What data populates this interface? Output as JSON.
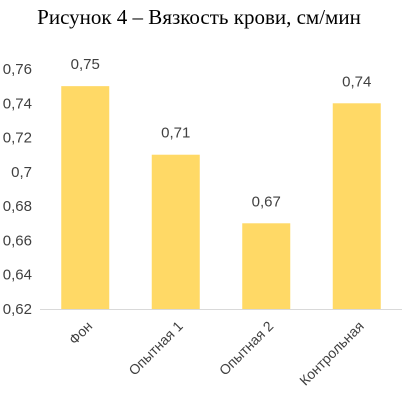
{
  "chart_data": {
    "type": "bar",
    "title": "Рисунок 4 – Вязкость крови, см/мин",
    "categories": [
      "Фон",
      "Опытная 1",
      "Опытная 2",
      "Контрольная"
    ],
    "values": [
      0.75,
      0.71,
      0.67,
      0.74
    ],
    "value_labels": [
      "0,75",
      "0,71",
      "0,67",
      "0,74"
    ],
    "ylim": [
      0.62,
      0.76
    ],
    "yticks": [
      0.62,
      0.64,
      0.66,
      0.68,
      0.7,
      0.72,
      0.74,
      0.76
    ],
    "ytick_labels": [
      "0,62",
      "0,64",
      "0,66",
      "0,68",
      "0,7",
      "0,72",
      "0,74",
      "0,76"
    ],
    "grid": false,
    "bar_color": "#FFD966",
    "axis_color": "#D9D9D9"
  }
}
